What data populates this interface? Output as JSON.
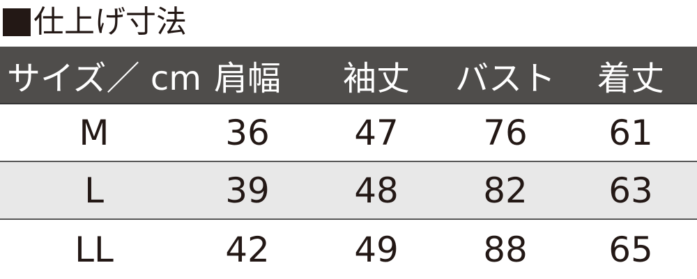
{
  "title": "仕上げ寸法",
  "colors": {
    "header_bg": "#4f4d4b",
    "stripe_bg": "#e8e8e8",
    "text": "#231815"
  },
  "headers": [
    "サイズ／ cm",
    "肩幅",
    "袖丈",
    "バスト",
    "着丈"
  ],
  "rows": [
    [
      "M",
      "36",
      "47",
      "76",
      "61"
    ],
    [
      "L",
      "39",
      "48",
      "82",
      "63"
    ],
    [
      "LL",
      "42",
      "49",
      "88",
      "65"
    ]
  ]
}
